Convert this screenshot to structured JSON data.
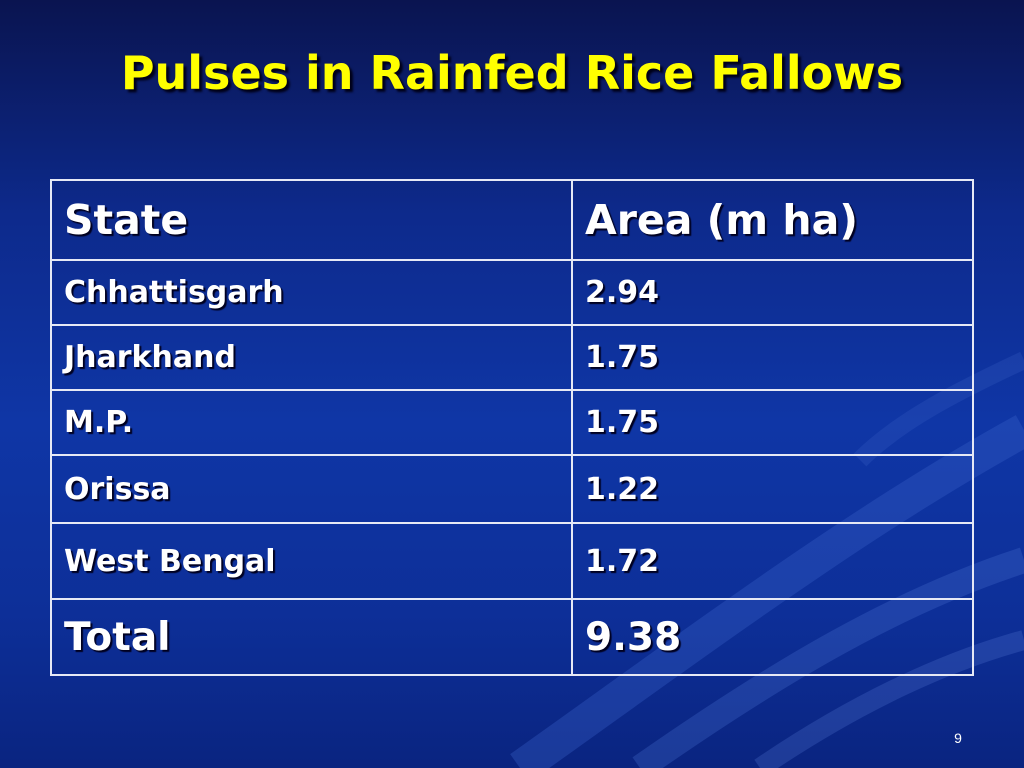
{
  "slide": {
    "title": "Pulses in Rainfed Rice Fallows",
    "page_number": "9"
  },
  "table": {
    "headers": [
      "State",
      "Area  (m ha)"
    ],
    "rows": [
      [
        "Chhattisgarh",
        "2.94"
      ],
      [
        "Jharkhand",
        "1.75"
      ],
      [
        "M.P.",
        "1.75"
      ],
      [
        "Orissa",
        "1.22"
      ],
      [
        "West Bengal",
        "1.72"
      ]
    ],
    "total": [
      "Total",
      "9.38"
    ]
  },
  "colors": {
    "background": "#0f36a6",
    "title": "#ffff00",
    "text": "#ffffff",
    "border": "#e6e9f5"
  }
}
